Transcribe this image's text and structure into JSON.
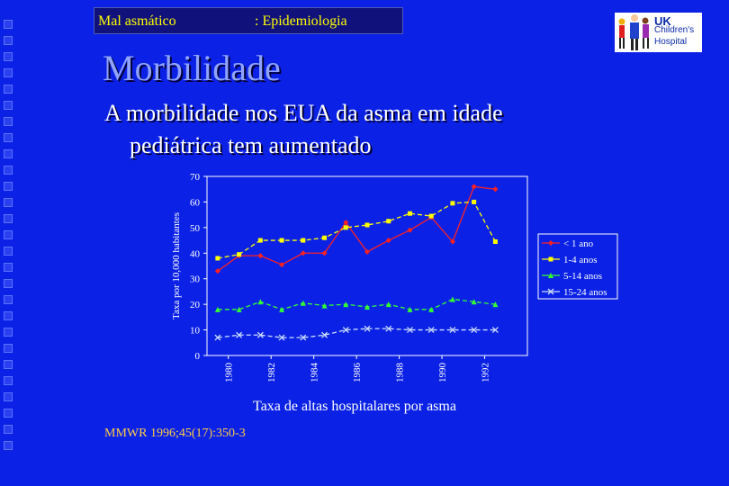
{
  "header": {
    "topic": "Mal asmático",
    "section": ": Epidemiologia"
  },
  "logo": {
    "icon": "children-figures-icon",
    "uk": "UK",
    "childrens": "Children's",
    "hospital": "Hospital"
  },
  "slide": {
    "title": "Morbilidade",
    "subtitle_line1": "A morbilidade nos EUA da asma em idade",
    "subtitle_line2": "pediátrica tem aumentado",
    "source": "MMWR 1996;45(17):350-3"
  },
  "colors": {
    "background": "#0b22e6",
    "plot_area": "#ffffff",
    "series_lt1": "#ff2020",
    "series_1_4": "#ffff00",
    "series_5_14": "#33ff33",
    "series_15_24": "#ccddff"
  },
  "chart_data": {
    "type": "line",
    "title": "",
    "xlabel": "Taxa de altas hospitalares por asma",
    "ylabel": "Taxa por 10,000 habitantes",
    "ylim": [
      0,
      70
    ],
    "yticks": [
      0,
      10,
      20,
      30,
      40,
      50,
      60,
      70
    ],
    "xlim": [
      1979,
      1994
    ],
    "xticks": [
      "1980",
      "1982",
      "1984",
      "1986",
      "1988",
      "1990",
      "1992"
    ],
    "x": [
      1979.5,
      1980.5,
      1981.5,
      1982.5,
      1983.5,
      1984.5,
      1985.5,
      1986.5,
      1987.5,
      1988.5,
      1989.5,
      1990.5,
      1991.5,
      1992.5
    ],
    "grid": false,
    "legend": "right",
    "series": [
      {
        "name": "< 1 ano",
        "marker": "diamond",
        "color": "#ff2020",
        "values": [
          33,
          39,
          39,
          35.5,
          40,
          40,
          52,
          40.5,
          45,
          49,
          54,
          44.5,
          66,
          65
        ]
      },
      {
        "name": "1-4 anos",
        "marker": "square",
        "color": "#ffff00",
        "values": [
          38,
          39.5,
          45,
          45,
          45,
          46,
          50,
          51,
          52.5,
          55.5,
          54.5,
          59.5,
          60,
          44.5
        ]
      },
      {
        "name": "5-14 anos",
        "marker": "triangle",
        "color": "#33ff33",
        "values": [
          18,
          18,
          21,
          18,
          20.5,
          19.5,
          20,
          19,
          20,
          18,
          18,
          22,
          21,
          20
        ]
      },
      {
        "name": "15-24 anos",
        "marker": "x",
        "color": "#ccddff",
        "values": [
          7,
          8,
          8,
          7,
          7,
          8,
          10,
          10.5,
          10.5,
          10,
          10,
          10,
          10,
          10
        ]
      }
    ]
  }
}
